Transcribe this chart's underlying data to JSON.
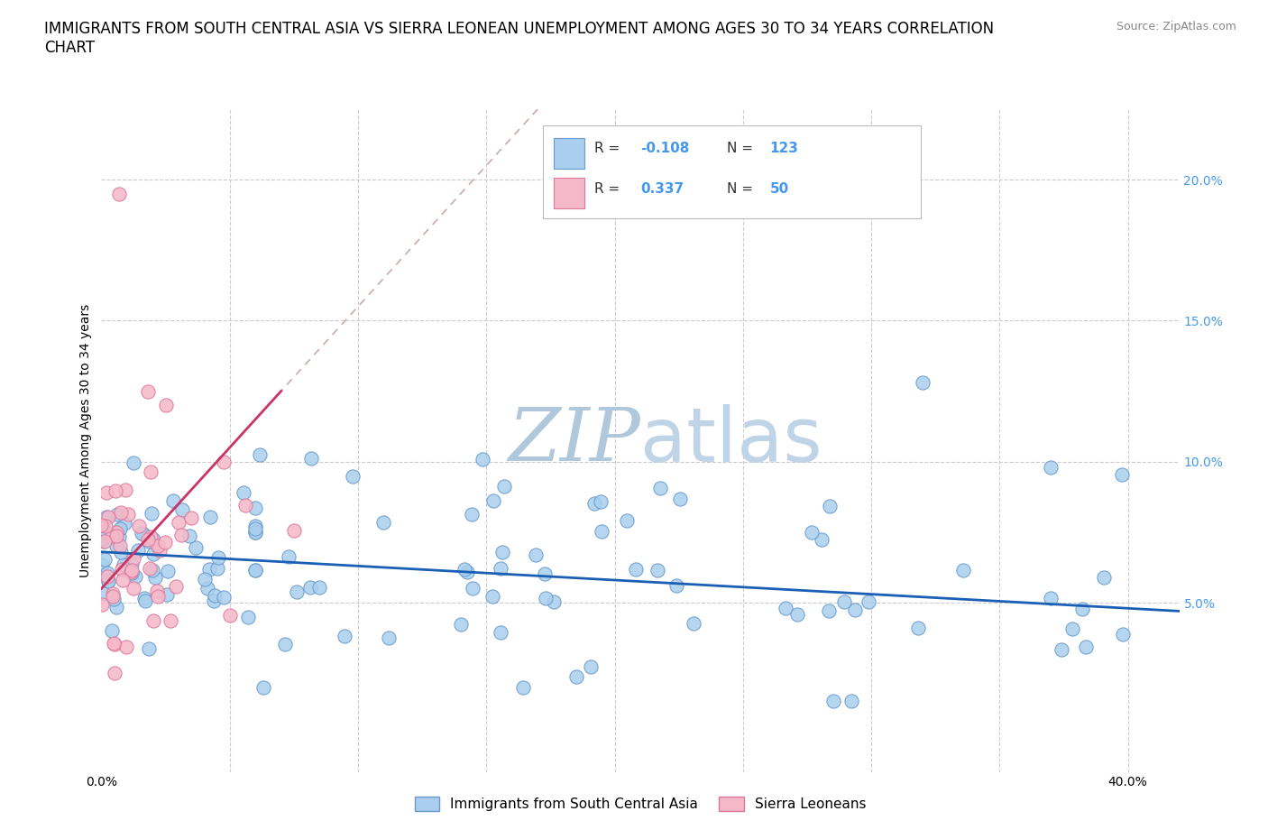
{
  "title": "IMMIGRANTS FROM SOUTH CENTRAL ASIA VS SIERRA LEONEAN UNEMPLOYMENT AMONG AGES 30 TO 34 YEARS CORRELATION\nCHART",
  "source_text": "Source: ZipAtlas.com",
  "ylabel": "Unemployment Among Ages 30 to 34 years",
  "xlim": [
    0.0,
    0.42
  ],
  "ylim": [
    -0.01,
    0.225
  ],
  "xticks": [
    0.0,
    0.05,
    0.1,
    0.15,
    0.2,
    0.25,
    0.3,
    0.35,
    0.4
  ],
  "yticks": [
    0.0,
    0.05,
    0.1,
    0.15,
    0.2
  ],
  "blue_color": "#aacfee",
  "pink_color": "#f5b8c8",
  "blue_edge": "#6699cc",
  "pink_edge": "#dd7799",
  "blue_line_color": "#1a5fb4",
  "pink_line_color": "#cc3366",
  "pink_dashed_color": "#ccaaaa",
  "watermark_color": "#c8d8e8",
  "right_ytick_color": "#4499ee",
  "background_color": "#ffffff",
  "grid_color": "#cccccc",
  "r_blue": -0.108,
  "n_blue": 123,
  "r_pink": 0.337,
  "n_pink": 50,
  "title_fontsize": 12,
  "axis_label_fontsize": 10,
  "tick_fontsize": 10,
  "legend_fontsize": 12,
  "watermark_fontsize": 60,
  "legend_label_blue": "Immigrants from South Central Asia",
  "legend_label_pink": "Sierra Leoneans"
}
